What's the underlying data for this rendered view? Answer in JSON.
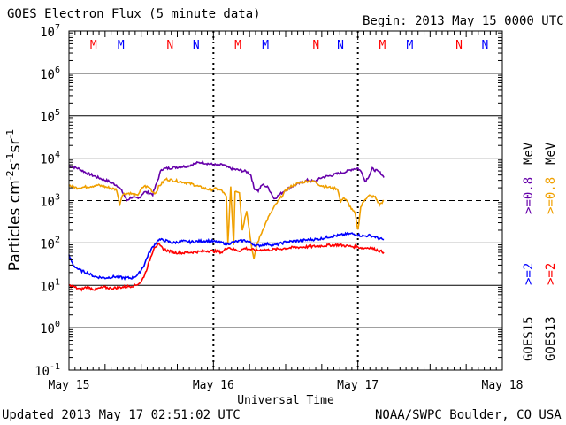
{
  "header": {
    "title": "GOES Electron Flux (5 minute data)",
    "begin": "Begin: 2013 May 15 0000 UTC"
  },
  "footer": {
    "updated": "Updated 2013 May 17 02:51:02 UTC",
    "credit": "NOAA/SWPC Boulder, CO USA"
  },
  "colors": {
    "goes15_08": "#6600aa",
    "goes13_08": "#f0a000",
    "goes15_2": "#0000ff",
    "goes13_2": "#ff0000",
    "grid": "#000000"
  },
  "chart_data": {
    "type": "line",
    "title": "GOES Electron Flux (5 minute data)",
    "xlabel": "Universal Time",
    "ylabel_base": "Particles cm",
    "ylabel_tail": "s",
    "ylabel_tail2": "sr",
    "ylabel_exp": "-2",
    "ylabel_exp2": "-1",
    "ylabel_exp3": "-1",
    "y_scale": "log",
    "ylim_exp": [
      -1,
      7
    ],
    "y_ticks": [
      {
        "base": "10",
        "exp": "7"
      },
      {
        "base": "10",
        "exp": "6"
      },
      {
        "base": "10",
        "exp": "5"
      },
      {
        "base": "10",
        "exp": "4"
      },
      {
        "base": "10",
        "exp": "3"
      },
      {
        "base": "10",
        "exp": "2"
      },
      {
        "base": "10",
        "exp": "1"
      },
      {
        "base": "10",
        "exp": "0"
      },
      {
        "base": "10",
        "exp": "-1"
      }
    ],
    "x_ticks": [
      "May 15",
      "May 16",
      "May 17",
      "May 18"
    ],
    "xlim_days": [
      0,
      3
    ],
    "threshold_exp": 3,
    "mn_markers": [
      {
        "label": "M",
        "day": 0.17,
        "color": "#ff0000"
      },
      {
        "label": "M",
        "day": 0.36,
        "color": "#0000ff"
      },
      {
        "label": "N",
        "day": 0.7,
        "color": "#ff0000"
      },
      {
        "label": "N",
        "day": 0.88,
        "color": "#0000ff"
      },
      {
        "label": "M",
        "day": 1.17,
        "color": "#ff0000"
      },
      {
        "label": "M",
        "day": 1.36,
        "color": "#0000ff"
      },
      {
        "label": "N",
        "day": 1.71,
        "color": "#ff0000"
      },
      {
        "label": "N",
        "day": 1.88,
        "color": "#0000ff"
      },
      {
        "label": "M",
        "day": 2.17,
        "color": "#ff0000"
      },
      {
        "label": "M",
        "day": 2.36,
        "color": "#0000ff"
      },
      {
        "label": "N",
        "day": 2.7,
        "color": "#ff0000"
      },
      {
        "label": "N",
        "day": 2.88,
        "color": "#0000ff"
      }
    ],
    "legend": {
      "goes15": "GOES15",
      "goes13": "GOES13",
      "ge2_15": ">=2",
      "ge2_13": ">=2",
      "ge08_15": ">=0.8",
      "ge08_13": ">=0.8",
      "unit_15": "MeV",
      "unit_13": "MeV"
    },
    "series": [
      {
        "key": "g15_08",
        "color": "#6600aa",
        "points": [
          [
            0.0,
            6500
          ],
          [
            0.06,
            5800
          ],
          [
            0.12,
            4500
          ],
          [
            0.2,
            3500
          ],
          [
            0.28,
            2800
          ],
          [
            0.34,
            2200
          ],
          [
            0.37,
            1600
          ],
          [
            0.4,
            1000
          ],
          [
            0.43,
            1200
          ],
          [
            0.48,
            1100
          ],
          [
            0.52,
            1600
          ],
          [
            0.56,
            1500
          ],
          [
            0.58,
            1400
          ],
          [
            0.6,
            2200
          ],
          [
            0.64,
            5500
          ],
          [
            0.72,
            6000
          ],
          [
            0.82,
            6500
          ],
          [
            0.88,
            7600
          ],
          [
            0.92,
            8000
          ],
          [
            0.98,
            7200
          ],
          [
            1.03,
            6800
          ],
          [
            1.07,
            7000
          ],
          [
            1.1,
            6000
          ],
          [
            1.14,
            5500
          ],
          [
            1.18,
            5200
          ],
          [
            1.23,
            4800
          ],
          [
            1.26,
            4000
          ],
          [
            1.28,
            2000
          ],
          [
            1.31,
            1700
          ],
          [
            1.34,
            2400
          ],
          [
            1.38,
            2000
          ],
          [
            1.4,
            1500
          ],
          [
            1.42,
            1100
          ],
          [
            1.46,
            1400
          ],
          [
            1.5,
            1800
          ],
          [
            1.55,
            2200
          ],
          [
            1.6,
            2600
          ],
          [
            1.65,
            3000
          ],
          [
            1.7,
            2800
          ],
          [
            1.75,
            3500
          ],
          [
            1.8,
            3800
          ],
          [
            1.85,
            4200
          ],
          [
            1.88,
            4500
          ],
          [
            1.92,
            4800
          ],
          [
            1.96,
            5500
          ],
          [
            2.0,
            5800
          ],
          [
            2.03,
            4500
          ],
          [
            2.05,
            2800
          ],
          [
            2.08,
            4000
          ],
          [
            2.1,
            5600
          ],
          [
            2.13,
            5000
          ],
          [
            2.16,
            4400
          ],
          [
            2.18,
            3500
          ]
        ]
      },
      {
        "key": "g13_08",
        "color": "#f0a000",
        "points": [
          [
            0.0,
            2300
          ],
          [
            0.05,
            2000
          ],
          [
            0.12,
            2100
          ],
          [
            0.2,
            2300
          ],
          [
            0.28,
            2000
          ],
          [
            0.33,
            1800
          ],
          [
            0.35,
            800
          ],
          [
            0.37,
            1400
          ],
          [
            0.42,
            1500
          ],
          [
            0.47,
            1300
          ],
          [
            0.52,
            2200
          ],
          [
            0.56,
            2000
          ],
          [
            0.58,
            1600
          ],
          [
            0.6,
            1500
          ],
          [
            0.62,
            2100
          ],
          [
            0.67,
            3200
          ],
          [
            0.72,
            3000
          ],
          [
            0.8,
            2700
          ],
          [
            0.86,
            2400
          ],
          [
            0.92,
            2000
          ],
          [
            0.98,
            1800
          ],
          [
            1.02,
            1900
          ],
          [
            1.06,
            1700
          ],
          [
            1.09,
            1200
          ],
          [
            1.1,
            100
          ],
          [
            1.12,
            2000
          ],
          [
            1.14,
            90
          ],
          [
            1.15,
            1700
          ],
          [
            1.18,
            1600
          ],
          [
            1.2,
            200
          ],
          [
            1.23,
            600
          ],
          [
            1.26,
            100
          ],
          [
            1.28,
            40
          ],
          [
            1.3,
            90
          ],
          [
            1.34,
            200
          ],
          [
            1.38,
            400
          ],
          [
            1.42,
            700
          ],
          [
            1.46,
            1100
          ],
          [
            1.5,
            1700
          ],
          [
            1.55,
            2300
          ],
          [
            1.6,
            2600
          ],
          [
            1.65,
            2900
          ],
          [
            1.7,
            2800
          ],
          [
            1.74,
            2300
          ],
          [
            1.78,
            2100
          ],
          [
            1.82,
            2000
          ],
          [
            1.86,
            1900
          ],
          [
            1.88,
            900
          ],
          [
            1.9,
            1200
          ],
          [
            1.93,
            900
          ],
          [
            1.96,
            600
          ],
          [
            1.98,
            500
          ],
          [
            2.0,
            200
          ],
          [
            2.02,
            700
          ],
          [
            2.05,
            1100
          ],
          [
            2.08,
            1300
          ],
          [
            2.12,
            1200
          ],
          [
            2.15,
            800
          ],
          [
            2.18,
            1000
          ]
        ]
      },
      {
        "key": "g15_2",
        "color": "#0000ff",
        "points": [
          [
            0.0,
            50
          ],
          [
            0.03,
            30
          ],
          [
            0.07,
            23
          ],
          [
            0.12,
            20
          ],
          [
            0.18,
            16
          ],
          [
            0.25,
            15
          ],
          [
            0.32,
            16
          ],
          [
            0.38,
            15
          ],
          [
            0.44,
            15
          ],
          [
            0.48,
            18
          ],
          [
            0.52,
            30
          ],
          [
            0.55,
            55
          ],
          [
            0.58,
            80
          ],
          [
            0.62,
            120
          ],
          [
            0.66,
            115
          ],
          [
            0.72,
            100
          ],
          [
            0.78,
            110
          ],
          [
            0.84,
            105
          ],
          [
            0.9,
            110
          ],
          [
            0.96,
            112
          ],
          [
            1.02,
            106
          ],
          [
            1.06,
            100
          ],
          [
            1.1,
            95
          ],
          [
            1.14,
            105
          ],
          [
            1.18,
            110
          ],
          [
            1.22,
            115
          ],
          [
            1.26,
            100
          ],
          [
            1.3,
            85
          ],
          [
            1.34,
            90
          ],
          [
            1.38,
            95
          ],
          [
            1.42,
            88
          ],
          [
            1.46,
            95
          ],
          [
            1.5,
            105
          ],
          [
            1.56,
            110
          ],
          [
            1.62,
            115
          ],
          [
            1.68,
            120
          ],
          [
            1.74,
            125
          ],
          [
            1.8,
            140
          ],
          [
            1.86,
            150
          ],
          [
            1.92,
            160
          ],
          [
            1.96,
            165
          ],
          [
            2.0,
            155
          ],
          [
            2.04,
            145
          ],
          [
            2.08,
            150
          ],
          [
            2.12,
            140
          ],
          [
            2.15,
            125
          ],
          [
            2.18,
            120
          ]
        ]
      },
      {
        "key": "g13_2",
        "color": "#ff0000",
        "points": [
          [
            0.0,
            10
          ],
          [
            0.04,
            9
          ],
          [
            0.08,
            8
          ],
          [
            0.12,
            9
          ],
          [
            0.18,
            8
          ],
          [
            0.24,
            9
          ],
          [
            0.3,
            8.5
          ],
          [
            0.36,
            9
          ],
          [
            0.42,
            9.5
          ],
          [
            0.46,
            10
          ],
          [
            0.5,
            12
          ],
          [
            0.53,
            20
          ],
          [
            0.56,
            40
          ],
          [
            0.59,
            80
          ],
          [
            0.62,
            90
          ],
          [
            0.66,
            70
          ],
          [
            0.72,
            60
          ],
          [
            0.78,
            58
          ],
          [
            0.84,
            60
          ],
          [
            0.9,
            62
          ],
          [
            0.96,
            65
          ],
          [
            1.02,
            63
          ],
          [
            1.06,
            60
          ],
          [
            1.1,
            80
          ],
          [
            1.14,
            70
          ],
          [
            1.18,
            65
          ],
          [
            1.22,
            75
          ],
          [
            1.26,
            70
          ],
          [
            1.3,
            65
          ],
          [
            1.34,
            70
          ],
          [
            1.38,
            68
          ],
          [
            1.42,
            70
          ],
          [
            1.46,
            72
          ],
          [
            1.5,
            75
          ],
          [
            1.56,
            78
          ],
          [
            1.62,
            80
          ],
          [
            1.68,
            82
          ],
          [
            1.74,
            85
          ],
          [
            1.8,
            88
          ],
          [
            1.86,
            90
          ],
          [
            1.92,
            85
          ],
          [
            1.96,
            82
          ],
          [
            2.0,
            80
          ],
          [
            2.04,
            75
          ],
          [
            2.08,
            78
          ],
          [
            2.12,
            70
          ],
          [
            2.15,
            65
          ],
          [
            2.18,
            60
          ]
        ]
      }
    ]
  }
}
